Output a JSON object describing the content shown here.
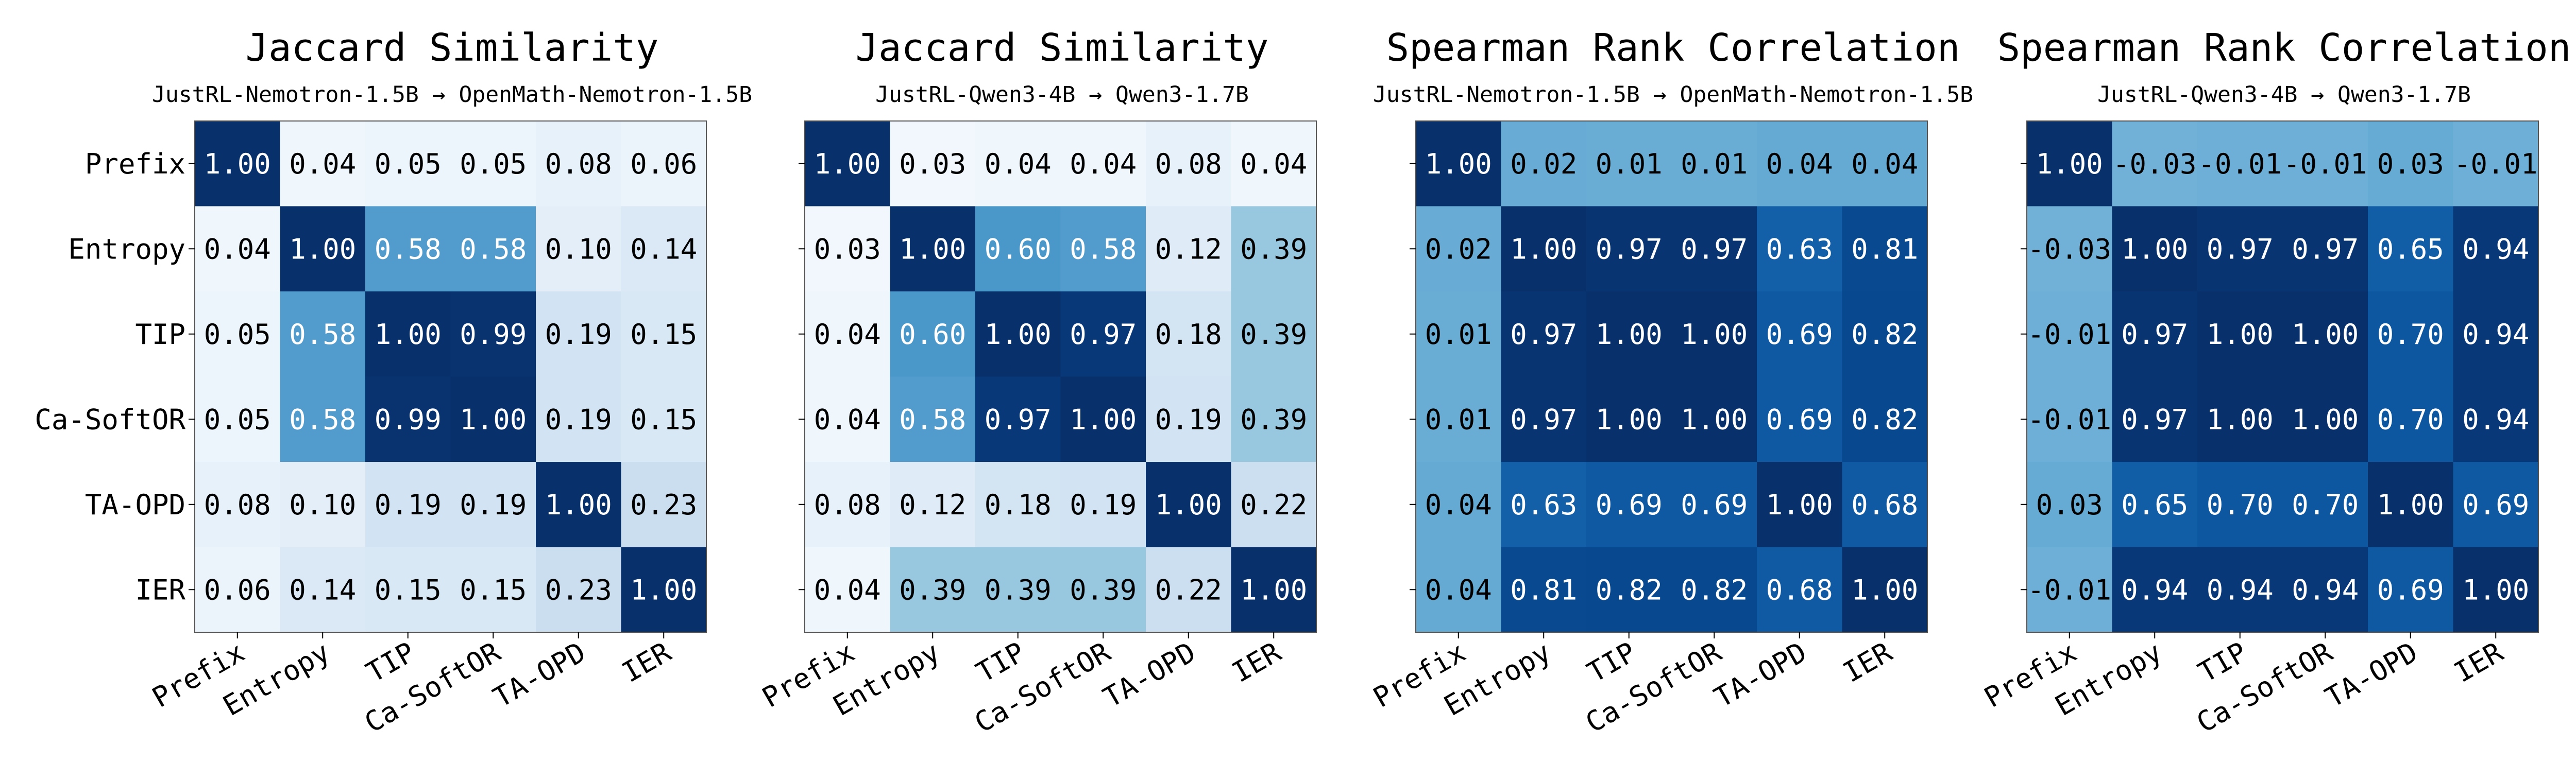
{
  "chart_data": [
    {
      "type": "heatmap",
      "title": "Jaccard Similarity",
      "subtitle": "JustRL-Nemotron-1.5B → OpenMath-Nemotron-1.5B",
      "row_labels": [
        "Prefix",
        "Entropy",
        "TIP",
        "Ca-SoftOR",
        "TA-OPD",
        "IER"
      ],
      "col_labels": [
        "Prefix",
        "Entropy",
        "TIP",
        "Ca-SoftOR",
        "TA-OPD",
        "IER"
      ],
      "value_labels": [
        [
          "1.00",
          "0.04",
          "0.05",
          "0.05",
          "0.08",
          "0.06"
        ],
        [
          "0.04",
          "1.00",
          "0.58",
          "0.58",
          "0.10",
          "0.14"
        ],
        [
          "0.05",
          "0.58",
          "1.00",
          "0.99",
          "0.19",
          "0.15"
        ],
        [
          "0.05",
          "0.58",
          "0.99",
          "1.00",
          "0.19",
          "0.15"
        ],
        [
          "0.08",
          "0.10",
          "0.19",
          "0.19",
          "1.00",
          "0.23"
        ],
        [
          "0.06",
          "0.14",
          "0.15",
          "0.15",
          "0.23",
          "1.00"
        ]
      ],
      "color_range": [
        0,
        1
      ],
      "colormap": "Blues"
    },
    {
      "type": "heatmap",
      "title": "Jaccard Similarity",
      "subtitle": "JustRL-Qwen3-4B → Qwen3-1.7B",
      "row_labels": [
        "",
        "",
        "",
        "",
        "",
        ""
      ],
      "col_labels": [
        "Prefix",
        "Entropy",
        "TIP",
        "Ca-SoftOR",
        "TA-OPD",
        "IER"
      ],
      "value_labels": [
        [
          "1.00",
          "0.03",
          "0.04",
          "0.04",
          "0.08",
          "0.04"
        ],
        [
          "0.03",
          "1.00",
          "0.60",
          "0.58",
          "0.12",
          "0.39"
        ],
        [
          "0.04",
          "0.60",
          "1.00",
          "0.97",
          "0.18",
          "0.39"
        ],
        [
          "0.04",
          "0.58",
          "0.97",
          "1.00",
          "0.19",
          "0.39"
        ],
        [
          "0.08",
          "0.12",
          "0.18",
          "0.19",
          "1.00",
          "0.22"
        ],
        [
          "0.04",
          "0.39",
          "0.39",
          "0.39",
          "0.22",
          "1.00"
        ]
      ],
      "color_range": [
        0,
        1
      ],
      "colormap": "Blues"
    },
    {
      "type": "heatmap",
      "title": "Spearman Rank Correlation",
      "subtitle": "JustRL-Nemotron-1.5B → OpenMath-Nemotron-1.5B",
      "row_labels": [
        "",
        "",
        "",
        "",
        "",
        ""
      ],
      "col_labels": [
        "Prefix",
        "Entropy",
        "TIP",
        "Ca-SoftOR",
        "TA-OPD",
        "IER"
      ],
      "value_labels": [
        [
          "1.00",
          "0.02",
          "0.01",
          "0.01",
          "0.04",
          "0.04"
        ],
        [
          "0.02",
          "1.00",
          "0.97",
          "0.97",
          "0.63",
          "0.81"
        ],
        [
          "0.01",
          "0.97",
          "1.00",
          "1.00",
          "0.69",
          "0.82"
        ],
        [
          "0.01",
          "0.97",
          "1.00",
          "1.00",
          "0.69",
          "0.82"
        ],
        [
          "0.04",
          "0.63",
          "0.69",
          "0.69",
          "1.00",
          "0.68"
        ],
        [
          "0.04",
          "0.81",
          "0.82",
          "0.82",
          "0.68",
          "1.00"
        ]
      ],
      "color_range": [
        -1,
        1
      ],
      "colormap": "Blues"
    },
    {
      "type": "heatmap",
      "title": "Spearman Rank Correlation",
      "subtitle": "JustRL-Qwen3-4B → Qwen3-1.7B",
      "row_labels": [
        "",
        "",
        "",
        "",
        "",
        ""
      ],
      "col_labels": [
        "Prefix",
        "Entropy",
        "TIP",
        "Ca-SoftOR",
        "TA-OPD",
        "IER"
      ],
      "value_labels": [
        [
          "1.00",
          "-0.03",
          "-0.01",
          "-0.01",
          "0.03",
          "-0.01"
        ],
        [
          "-0.03",
          "1.00",
          "0.97",
          "0.97",
          "0.65",
          "0.94"
        ],
        [
          "-0.01",
          "0.97",
          "1.00",
          "1.00",
          "0.70",
          "0.94"
        ],
        [
          "-0.01",
          "0.97",
          "1.00",
          "1.00",
          "0.70",
          "0.94"
        ],
        [
          "0.03",
          "0.65",
          "0.70",
          "0.70",
          "1.00",
          "0.69"
        ],
        [
          "-0.01",
          "0.94",
          "0.94",
          "0.94",
          "0.69",
          "1.00"
        ]
      ],
      "color_range": [
        -1,
        1
      ],
      "colormap": "Blues"
    }
  ]
}
